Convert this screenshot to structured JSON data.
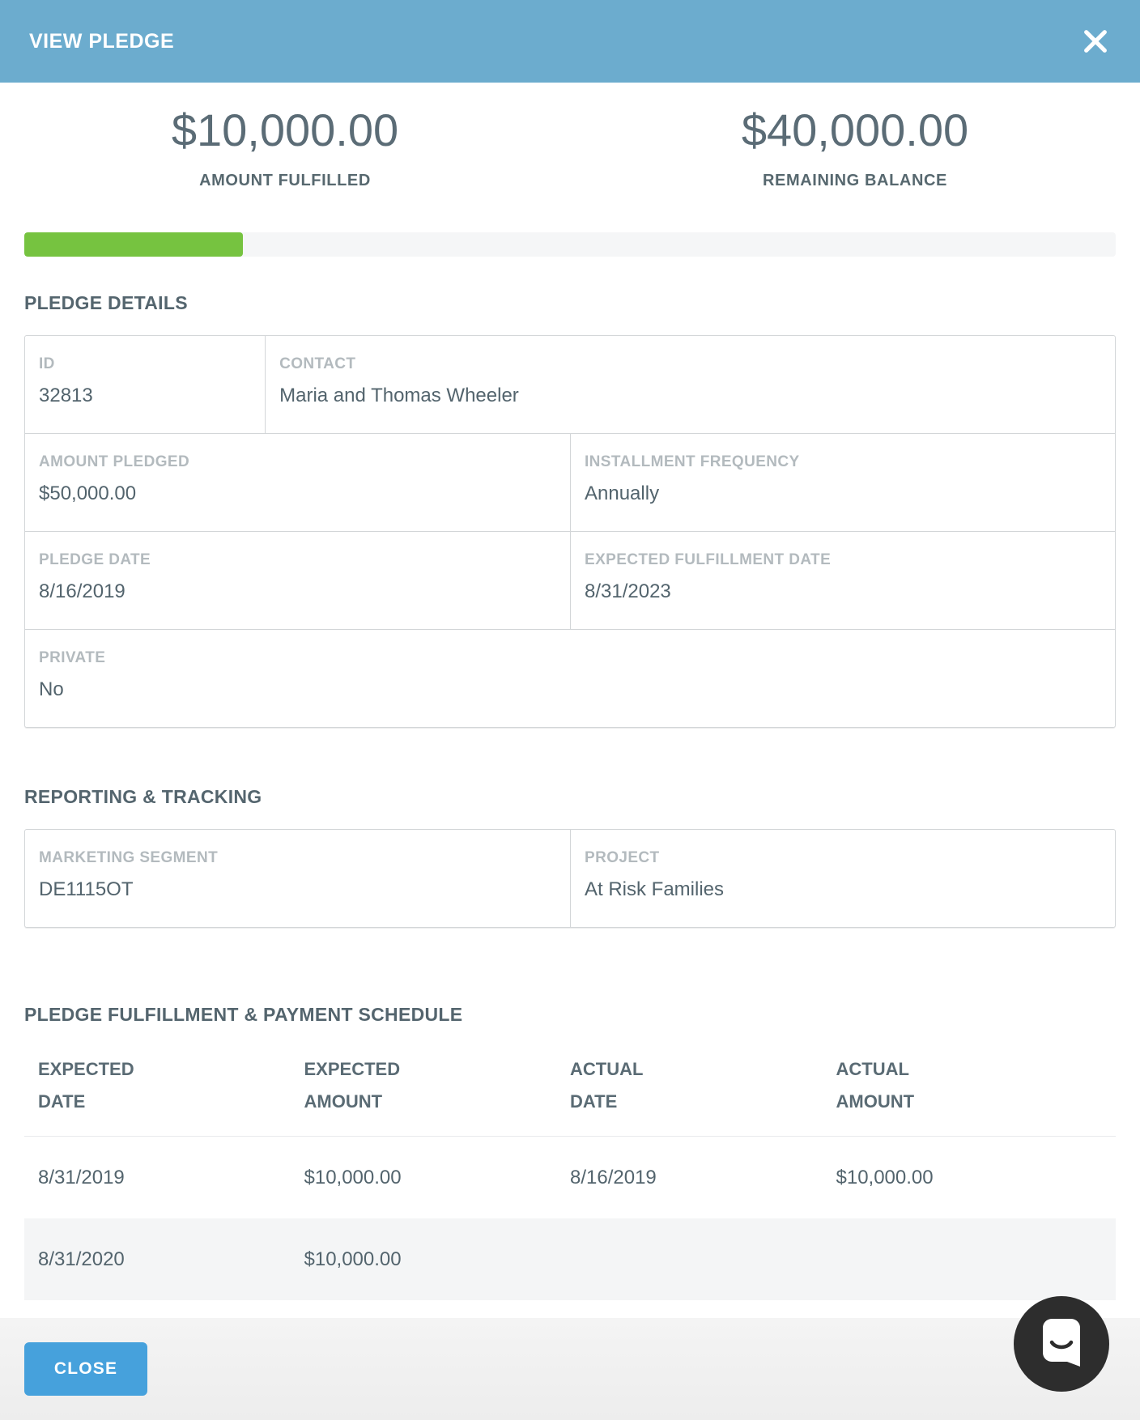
{
  "colors": {
    "header_bg": "#6cacce",
    "accent_blue": "#46a1dc",
    "progress_green": "#76c340",
    "chat_circle": "#2d2d2d"
  },
  "header": {
    "title": "VIEW PLEDGE"
  },
  "summary": {
    "fulfilled_amount": "$10,000.00",
    "fulfilled_label": "AMOUNT FULFILLED",
    "remaining_amount": "$40,000.00",
    "remaining_label": "REMAINING BALANCE",
    "progress_percent": 20
  },
  "pledge_details": {
    "title": "PLEDGE DETAILS",
    "id": {
      "label": "ID",
      "value": "32813"
    },
    "contact": {
      "label": "CONTACT",
      "value": "Maria and Thomas Wheeler"
    },
    "amount_pledged": {
      "label": "AMOUNT PLEDGED",
      "value": "$50,000.00"
    },
    "installment_frequency": {
      "label": "INSTALLMENT FREQUENCY",
      "value": "Annually"
    },
    "pledge_date": {
      "label": "PLEDGE DATE",
      "value": "8/16/2019"
    },
    "expected_fulfillment_date": {
      "label": "EXPECTED FULFILLMENT DATE",
      "value": "8/31/2023"
    },
    "private": {
      "label": "PRIVATE",
      "value": "No"
    }
  },
  "reporting_tracking": {
    "title": "REPORTING & TRACKING",
    "marketing_segment": {
      "label": "MARKETING SEGMENT",
      "value": "DE1115OT"
    },
    "project": {
      "label": "PROJECT",
      "value": "At Risk Families"
    }
  },
  "schedule": {
    "title": "PLEDGE FULFILLMENT & PAYMENT SCHEDULE",
    "columns": [
      "EXPECTED DATE",
      "EXPECTED AMOUNT",
      "ACTUAL DATE",
      "ACTUAL AMOUNT"
    ],
    "rows": [
      {
        "expected_date": "8/31/2019",
        "expected_amount": "$10,000.00",
        "actual_date": "8/16/2019",
        "actual_amount": "$10,000.00"
      },
      {
        "expected_date": "8/31/2020",
        "expected_amount": "$10,000.00",
        "actual_date": "",
        "actual_amount": ""
      }
    ]
  },
  "footer": {
    "close_label": "CLOSE"
  }
}
